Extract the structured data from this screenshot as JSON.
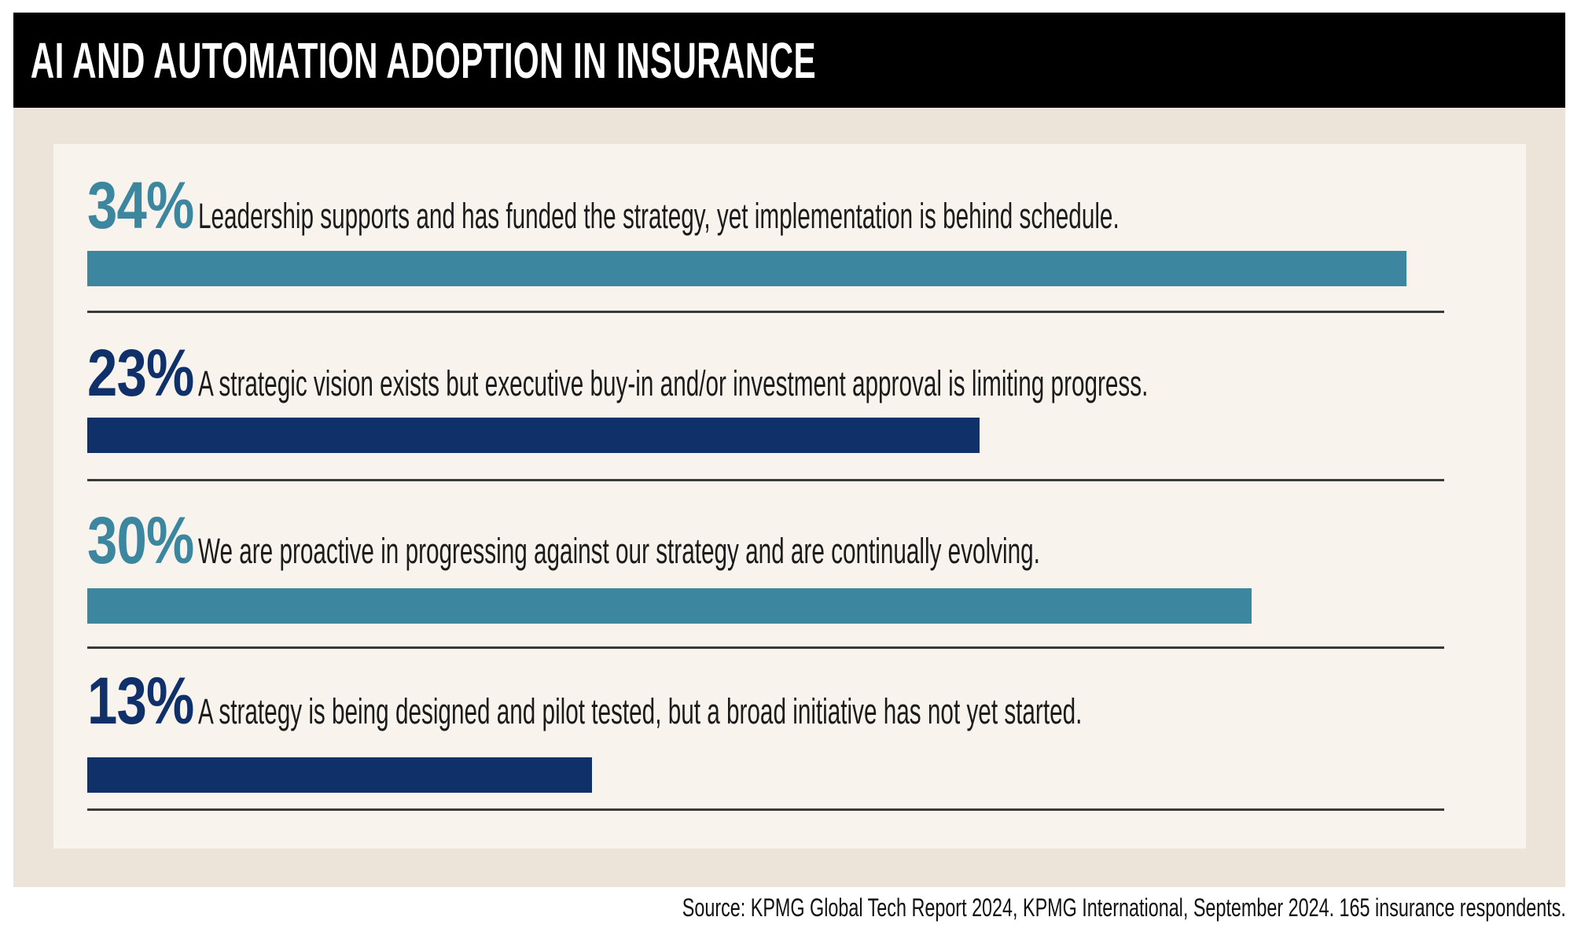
{
  "header": {
    "title": "AI AND AUTOMATION ADOPTION IN INSURANCE"
  },
  "palette": {
    "teal": "#3c86a0",
    "navy": "#10306a",
    "header_black": "#000000",
    "background_beige": "#ece4d8",
    "panel_cream": "#f8f4ed",
    "divider_gray": "#3a3a3a",
    "text_dark": "#1b1b1b"
  },
  "rows": [
    {
      "display": "34%",
      "percent": 34,
      "color": "teal",
      "label": "Leadership supports and has funded the strategy, yet implementation is behind schedule."
    },
    {
      "display": "23%",
      "percent": 23,
      "color": "navy",
      "label": "A strategic vision exists but executive buy-in and/or investment approval is limiting progress."
    },
    {
      "display": "30%",
      "percent": 30,
      "color": "teal",
      "label": "We are proactive in progressing against our strategy and are continually evolving."
    },
    {
      "display": "13%",
      "percent": 13,
      "color": "navy",
      "label": "A strategy is being designed and pilot tested, but a broad initiative has not yet started."
    }
  ],
  "footer": {
    "source": "Source: KPMG Global Tech Report 2024, KPMG International, September 2024. 165 insurance respondents."
  },
  "chart_data": {
    "type": "bar",
    "orientation": "horizontal",
    "title": "AI AND AUTOMATION ADOPTION IN INSURANCE",
    "categories": [
      "Leadership supports and has funded the strategy, yet implementation is behind schedule.",
      "A strategic vision exists but executive buy-in and/or investment approval is limiting progress.",
      "We are proactive in progressing against our strategy and are continually evolving.",
      "A strategy is being designed and pilot tested, but a broad initiative has not yet started."
    ],
    "values": [
      34,
      23,
      30,
      13
    ],
    "unit": "%",
    "bar_colors": [
      "#3c86a0",
      "#10306a",
      "#3c86a0",
      "#10306a"
    ],
    "xlim": [
      0,
      35
    ],
    "grid": false,
    "legend": false,
    "source": "Source: KPMG Global Tech Report 2024, KPMG International, September 2024. 165 insurance respondents."
  }
}
